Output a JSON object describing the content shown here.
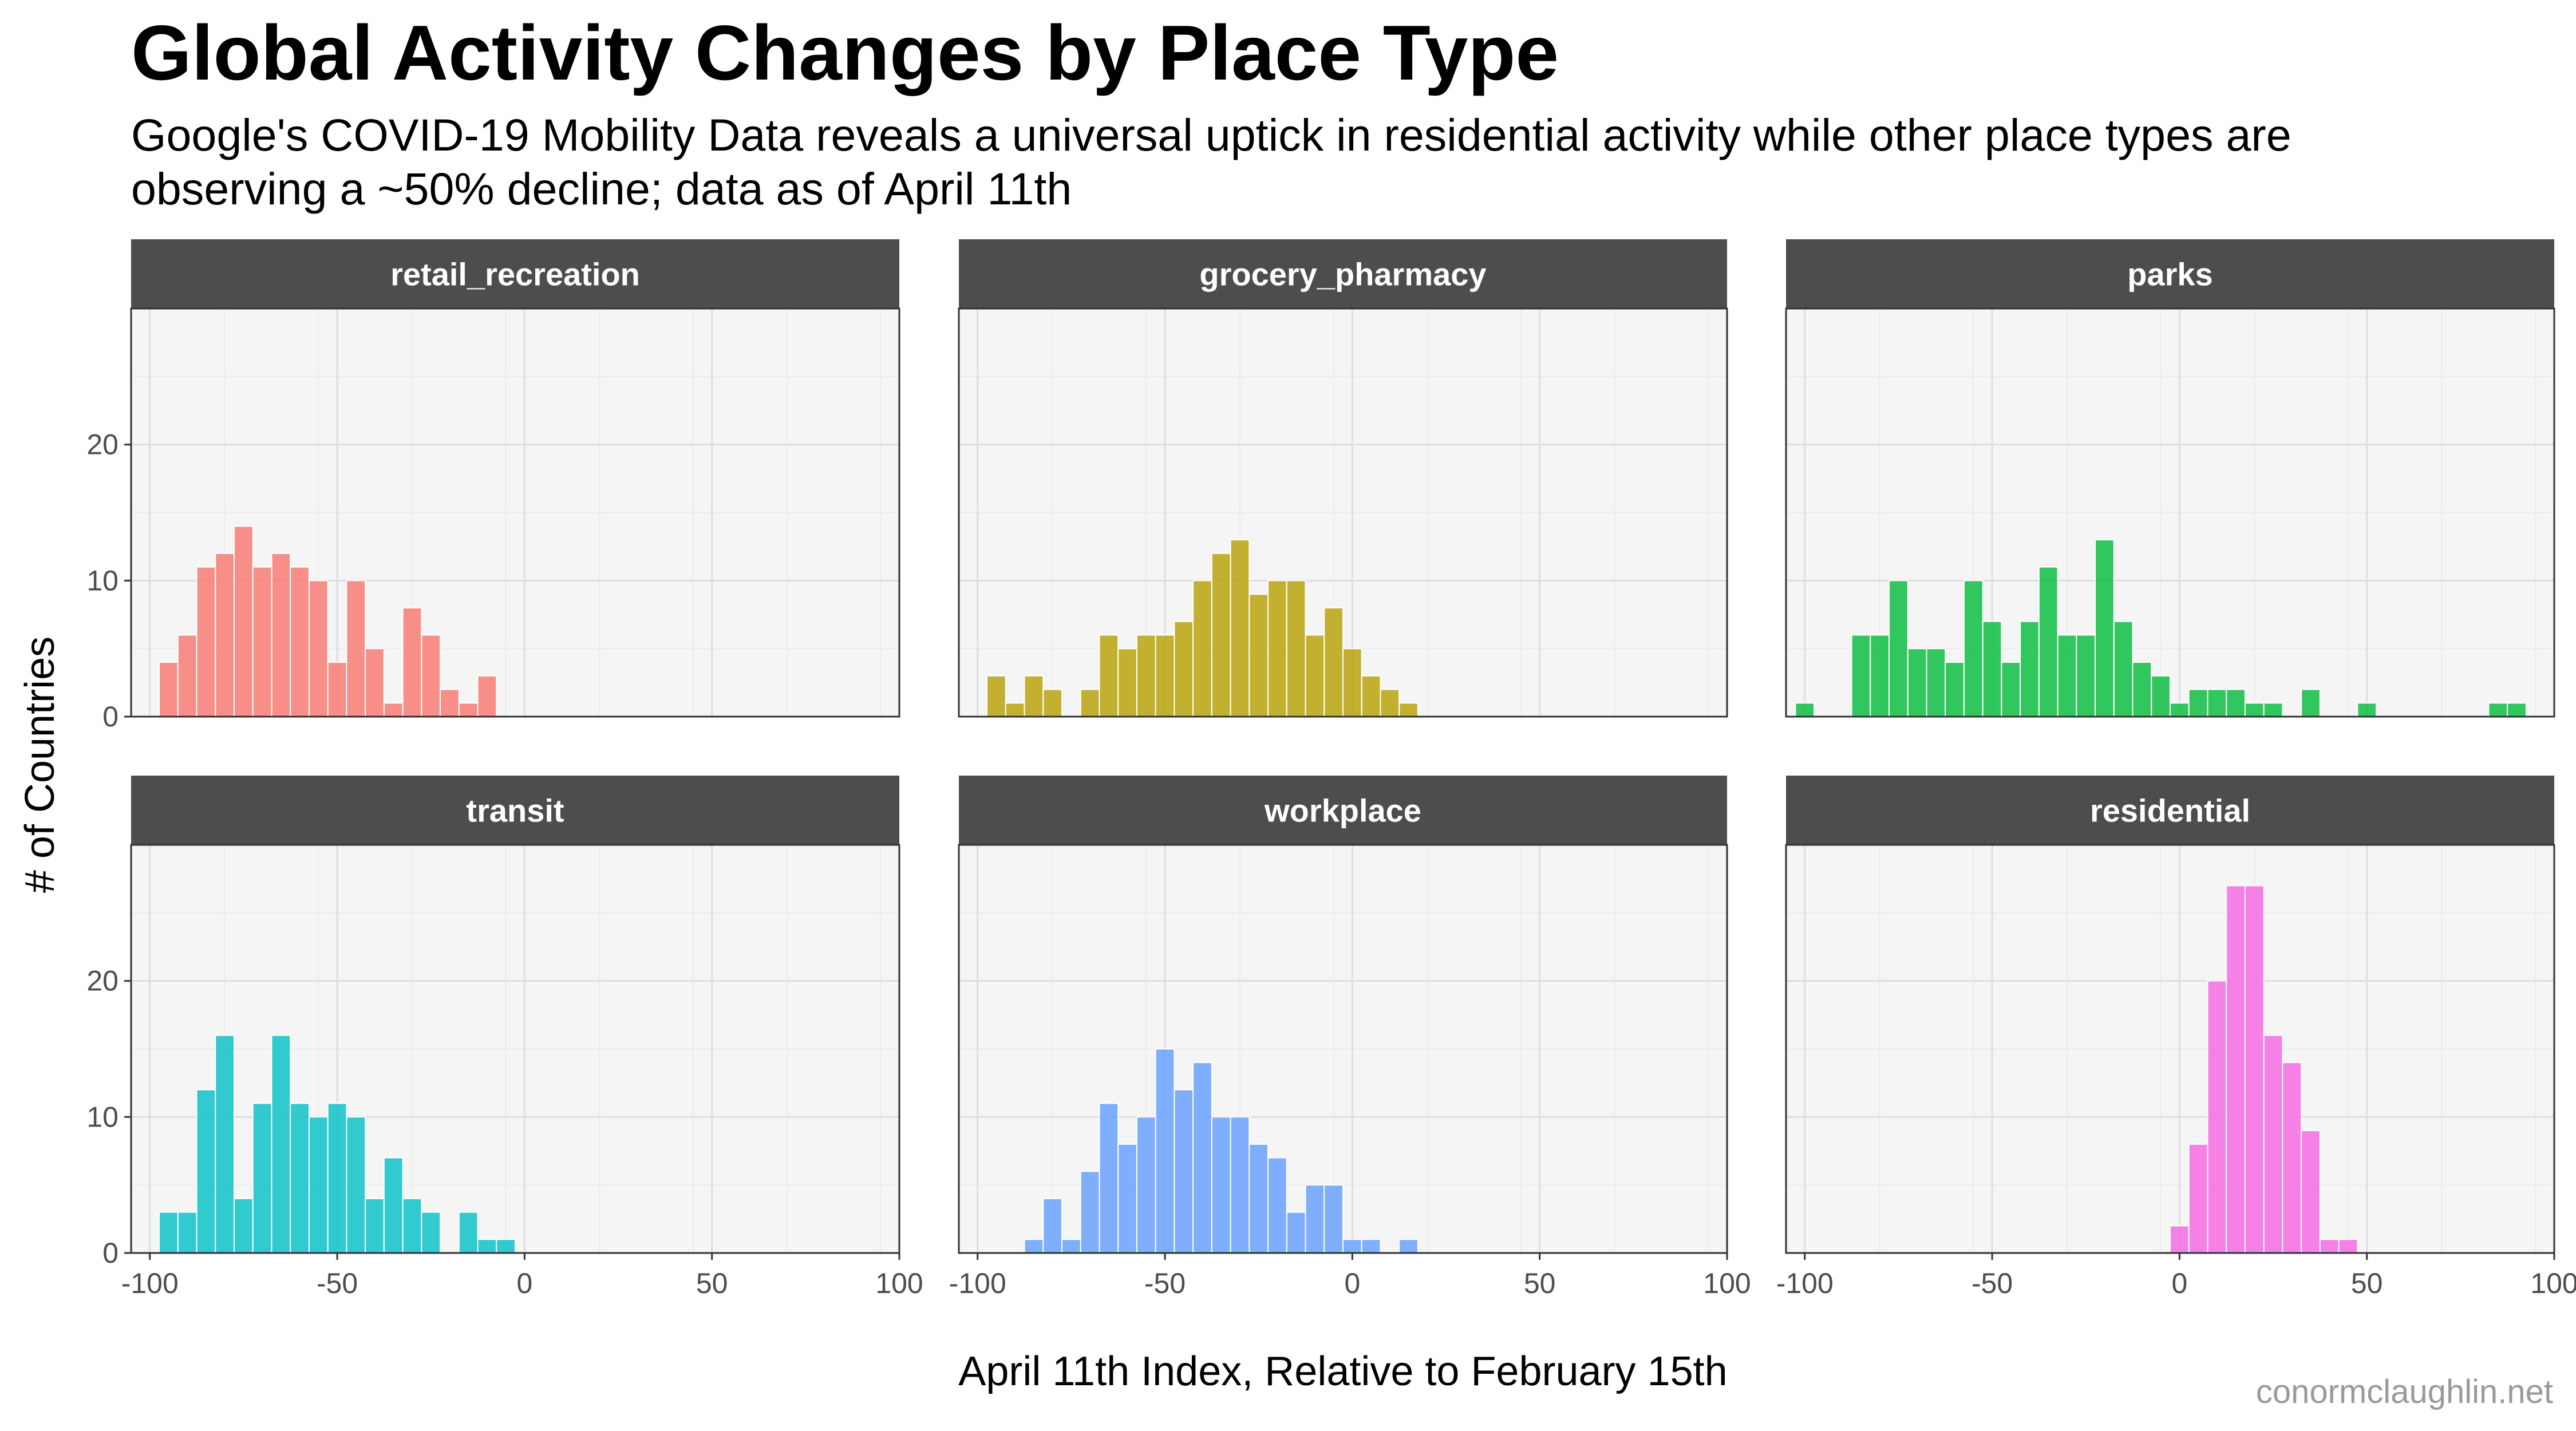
{
  "title": "Global Activity Changes by Place Type",
  "subtitle": "Google's COVID-19 Mobility Data reveals a universal uptick in residential activity while other place types are observing a ~50% decline; data as of April 11th",
  "caption": "conormclaughlin.net",
  "chart_data": {
    "type": "histogram",
    "xlabel": "April 11th Index, Relative to February 15th",
    "ylabel": "# of Countries",
    "xlim": [
      -105,
      100
    ],
    "ylim": [
      0,
      30
    ],
    "x_ticks": [
      -100,
      -50,
      0,
      50,
      100
    ],
    "y_ticks": [
      0,
      10,
      20
    ],
    "bin_width": 5,
    "grid": true,
    "legend": "none",
    "colors": {
      "retail_recreation": "#F8766D",
      "grocery_pharmacy": "#B79F00",
      "parks": "#00BA38",
      "transit": "#00BFC4",
      "workplace": "#619CFF",
      "residential": "#F564E3"
    },
    "panels": [
      {
        "name": "retail_recreation",
        "bins": [
          {
            "x": -95,
            "count": 4
          },
          {
            "x": -90,
            "count": 6
          },
          {
            "x": -85,
            "count": 11
          },
          {
            "x": -80,
            "count": 12
          },
          {
            "x": -75,
            "count": 14
          },
          {
            "x": -70,
            "count": 11
          },
          {
            "x": -65,
            "count": 12
          },
          {
            "x": -60,
            "count": 11
          },
          {
            "x": -55,
            "count": 10
          },
          {
            "x": -50,
            "count": 4
          },
          {
            "x": -45,
            "count": 10
          },
          {
            "x": -40,
            "count": 5
          },
          {
            "x": -35,
            "count": 1
          },
          {
            "x": -30,
            "count": 8
          },
          {
            "x": -25,
            "count": 6
          },
          {
            "x": -20,
            "count": 2
          },
          {
            "x": -15,
            "count": 1
          },
          {
            "x": -10,
            "count": 3
          }
        ]
      },
      {
        "name": "grocery_pharmacy",
        "bins": [
          {
            "x": -95,
            "count": 3
          },
          {
            "x": -90,
            "count": 1
          },
          {
            "x": -85,
            "count": 3
          },
          {
            "x": -80,
            "count": 2
          },
          {
            "x": -70,
            "count": 2
          },
          {
            "x": -65,
            "count": 6
          },
          {
            "x": -60,
            "count": 5
          },
          {
            "x": -55,
            "count": 6
          },
          {
            "x": -50,
            "count": 6
          },
          {
            "x": -45,
            "count": 7
          },
          {
            "x": -40,
            "count": 10
          },
          {
            "x": -35,
            "count": 12
          },
          {
            "x": -30,
            "count": 13
          },
          {
            "x": -25,
            "count": 9
          },
          {
            "x": -20,
            "count": 10
          },
          {
            "x": -15,
            "count": 10
          },
          {
            "x": -10,
            "count": 6
          },
          {
            "x": -5,
            "count": 8
          },
          {
            "x": 0,
            "count": 5
          },
          {
            "x": 5,
            "count": 3
          },
          {
            "x": 10,
            "count": 2
          },
          {
            "x": 15,
            "count": 1
          }
        ]
      },
      {
        "name": "parks",
        "bins": [
          {
            "x": -100,
            "count": 1
          },
          {
            "x": -85,
            "count": 6
          },
          {
            "x": -80,
            "count": 6
          },
          {
            "x": -75,
            "count": 10
          },
          {
            "x": -70,
            "count": 5
          },
          {
            "x": -65,
            "count": 5
          },
          {
            "x": -60,
            "count": 4
          },
          {
            "x": -55,
            "count": 10
          },
          {
            "x": -50,
            "count": 7
          },
          {
            "x": -45,
            "count": 4
          },
          {
            "x": -40,
            "count": 7
          },
          {
            "x": -35,
            "count": 11
          },
          {
            "x": -30,
            "count": 6
          },
          {
            "x": -25,
            "count": 6
          },
          {
            "x": -20,
            "count": 13
          },
          {
            "x": -15,
            "count": 7
          },
          {
            "x": -10,
            "count": 4
          },
          {
            "x": -5,
            "count": 3
          },
          {
            "x": 0,
            "count": 1
          },
          {
            "x": 5,
            "count": 2
          },
          {
            "x": 10,
            "count": 2
          },
          {
            "x": 15,
            "count": 2
          },
          {
            "x": 20,
            "count": 1
          },
          {
            "x": 25,
            "count": 1
          },
          {
            "x": 35,
            "count": 2
          },
          {
            "x": 50,
            "count": 1
          },
          {
            "x": 85,
            "count": 1
          },
          {
            "x": 90,
            "count": 1
          }
        ]
      },
      {
        "name": "transit",
        "bins": [
          {
            "x": -95,
            "count": 3
          },
          {
            "x": -90,
            "count": 3
          },
          {
            "x": -85,
            "count": 12
          },
          {
            "x": -80,
            "count": 16
          },
          {
            "x": -75,
            "count": 4
          },
          {
            "x": -70,
            "count": 11
          },
          {
            "x": -65,
            "count": 16
          },
          {
            "x": -60,
            "count": 11
          },
          {
            "x": -55,
            "count": 10
          },
          {
            "x": -50,
            "count": 11
          },
          {
            "x": -45,
            "count": 10
          },
          {
            "x": -40,
            "count": 4
          },
          {
            "x": -35,
            "count": 7
          },
          {
            "x": -30,
            "count": 4
          },
          {
            "x": -25,
            "count": 3
          },
          {
            "x": -15,
            "count": 3
          },
          {
            "x": -10,
            "count": 1
          },
          {
            "x": -5,
            "count": 1
          }
        ]
      },
      {
        "name": "workplace",
        "bins": [
          {
            "x": -85,
            "count": 1
          },
          {
            "x": -80,
            "count": 4
          },
          {
            "x": -75,
            "count": 1
          },
          {
            "x": -70,
            "count": 6
          },
          {
            "x": -65,
            "count": 11
          },
          {
            "x": -60,
            "count": 8
          },
          {
            "x": -55,
            "count": 10
          },
          {
            "x": -50,
            "count": 15
          },
          {
            "x": -45,
            "count": 12
          },
          {
            "x": -40,
            "count": 14
          },
          {
            "x": -35,
            "count": 10
          },
          {
            "x": -30,
            "count": 10
          },
          {
            "x": -25,
            "count": 8
          },
          {
            "x": -20,
            "count": 7
          },
          {
            "x": -15,
            "count": 3
          },
          {
            "x": -10,
            "count": 5
          },
          {
            "x": -5,
            "count": 5
          },
          {
            "x": 0,
            "count": 1
          },
          {
            "x": 5,
            "count": 1
          },
          {
            "x": 15,
            "count": 1
          }
        ]
      },
      {
        "name": "residential",
        "bins": [
          {
            "x": 0,
            "count": 2
          },
          {
            "x": 5,
            "count": 8
          },
          {
            "x": 10,
            "count": 20
          },
          {
            "x": 15,
            "count": 27
          },
          {
            "x": 20,
            "count": 27
          },
          {
            "x": 25,
            "count": 16
          },
          {
            "x": 30,
            "count": 14
          },
          {
            "x": 35,
            "count": 9
          },
          {
            "x": 40,
            "count": 1
          },
          {
            "x": 45,
            "count": 1
          }
        ]
      }
    ]
  }
}
